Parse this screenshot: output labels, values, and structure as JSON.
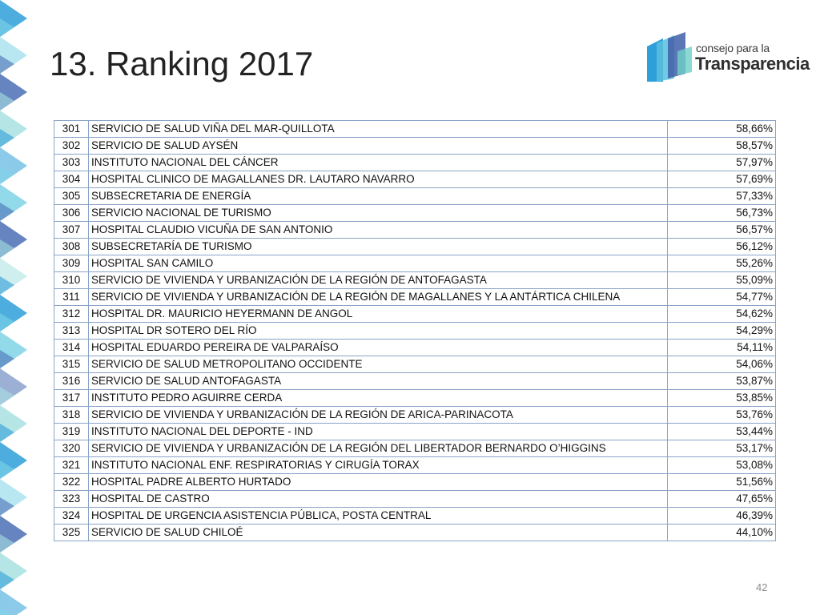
{
  "slide": {
    "title": "13. Ranking 2017",
    "page_number": "42"
  },
  "logo": {
    "line1": "consejo para la",
    "line2": "Transparencia",
    "colors": [
      "#2e9fd8",
      "#5bc0de",
      "#6fd0c8",
      "#3f5fa8"
    ]
  },
  "decor": {
    "colors": [
      "#2e9fd8",
      "#7fd3e6",
      "#4a6fb5",
      "#a8e0e0"
    ]
  },
  "ranking": {
    "rows": [
      {
        "rank": "301",
        "name": "SERVICIO DE SALUD VIÑA DEL MAR-QUILLOTA",
        "score": "58,66%"
      },
      {
        "rank": "302",
        "name": "SERVICIO DE SALUD AYSÉN",
        "score": "58,57%"
      },
      {
        "rank": "303",
        "name": "INSTITUTO NACIONAL DEL CÁNCER",
        "score": "57,97%"
      },
      {
        "rank": "304",
        "name": "HOSPITAL CLINICO DE MAGALLANES DR. LAUTARO NAVARRO",
        "score": "57,69%"
      },
      {
        "rank": "305",
        "name": "SUBSECRETARIA DE ENERGÍA",
        "score": "57,33%"
      },
      {
        "rank": "306",
        "name": "SERVICIO NACIONAL DE TURISMO",
        "score": "56,73%"
      },
      {
        "rank": "307",
        "name": "HOSPITAL CLAUDIO VICUÑA DE SAN ANTONIO",
        "score": "56,57%"
      },
      {
        "rank": "308",
        "name": "SUBSECRETARÍA DE TURISMO",
        "score": "56,12%"
      },
      {
        "rank": "309",
        "name": "HOSPITAL SAN CAMILO",
        "score": "55,26%"
      },
      {
        "rank": "310",
        "name": "SERVICIO DE VIVIENDA Y URBANIZACIÓN DE LA REGIÓN DE ANTOFAGASTA",
        "score": "55,09%"
      },
      {
        "rank": "311",
        "name": "SERVICIO DE VIVIENDA Y URBANIZACIÓN DE LA REGIÓN DE MAGALLANES Y LA ANTÁRTICA CHILENA",
        "score": "54,77%"
      },
      {
        "rank": "312",
        "name": "HOSPITAL DR. MAURICIO HEYERMANN DE ANGOL",
        "score": "54,62%"
      },
      {
        "rank": "313",
        "name": "HOSPITAL DR SOTERO DEL RÍO",
        "score": "54,29%"
      },
      {
        "rank": "314",
        "name": "HOSPITAL EDUARDO PEREIRA DE VALPARAÍSO",
        "score": "54,11%"
      },
      {
        "rank": "315",
        "name": "SERVICIO DE SALUD METROPOLITANO OCCIDENTE",
        "score": "54,06%"
      },
      {
        "rank": "316",
        "name": "SERVICIO DE SALUD ANTOFAGASTA",
        "score": "53,87%"
      },
      {
        "rank": "317",
        "name": "INSTITUTO PEDRO AGUIRRE CERDA",
        "score": "53,85%"
      },
      {
        "rank": "318",
        "name": "SERVICIO DE VIVIENDA Y URBANIZACIÓN DE LA REGIÓN DE ARICA-PARINACOTA",
        "score": "53,76%"
      },
      {
        "rank": "319",
        "name": "INSTITUTO NACIONAL DEL DEPORTE - IND",
        "score": "53,44%"
      },
      {
        "rank": "320",
        "name": "SERVICIO DE VIVIENDA Y URBANIZACIÓN DE LA REGIÓN DEL LIBERTADOR BERNARDO O’HIGGINS",
        "score": "53,17%"
      },
      {
        "rank": "321",
        "name": "INSTITUTO NACIONAL ENF. RESPIRATORIAS Y CIRUGÍA TORAX",
        "score": "53,08%"
      },
      {
        "rank": "322",
        "name": "HOSPITAL PADRE ALBERTO HURTADO",
        "score": "51,56%"
      },
      {
        "rank": "323",
        "name": "HOSPITAL DE CASTRO",
        "score": "47,65%"
      },
      {
        "rank": "324",
        "name": "HOSPITAL DE URGENCIA ASISTENCIA PÚBLICA, POSTA CENTRAL",
        "score": "46,39%"
      },
      {
        "rank": "325",
        "name": "SERVICIO DE SALUD CHILOÉ",
        "score": "44,10%"
      }
    ]
  }
}
